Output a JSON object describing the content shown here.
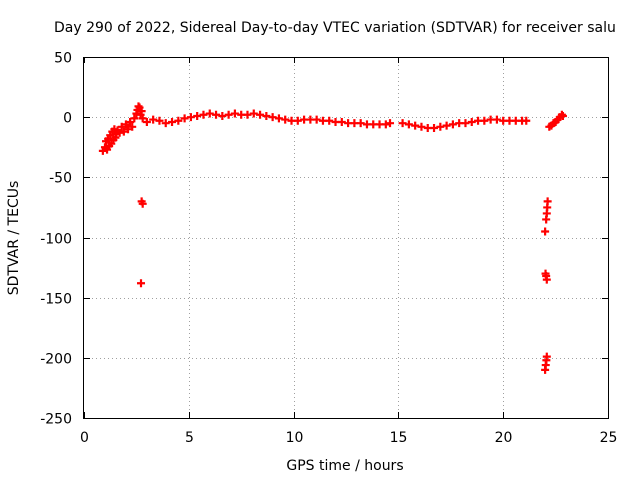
{
  "chart_data": {
    "type": "scatter",
    "title": "Day 290 of 2022, Sidereal Day-to-day VTEC variation (SDTVAR) for receiver salu",
    "xlabel": "GPS time / hours",
    "ylabel": "SDTVAR / TECUs",
    "xlim": [
      0,
      25
    ],
    "ylim": [
      -250,
      50
    ],
    "xticks": [
      0,
      5,
      10,
      15,
      20,
      25
    ],
    "yticks": [
      50,
      0,
      -50,
      -100,
      -150,
      -200,
      -250
    ],
    "grid": true,
    "marker": "plus",
    "color": "#ff0000",
    "series": [
      {
        "name": "SDTVAR",
        "points": [
          [
            0.9,
            -28
          ],
          [
            1.0,
            -25
          ],
          [
            1.05,
            -20
          ],
          [
            1.1,
            -27
          ],
          [
            1.15,
            -18
          ],
          [
            1.2,
            -24
          ],
          [
            1.25,
            -15
          ],
          [
            1.3,
            -22
          ],
          [
            1.35,
            -12
          ],
          [
            1.4,
            -19
          ],
          [
            1.45,
            -10
          ],
          [
            1.5,
            -17
          ],
          [
            1.55,
            -14
          ],
          [
            1.6,
            -11
          ],
          [
            1.7,
            -13
          ],
          [
            1.8,
            -8
          ],
          [
            1.9,
            -12
          ],
          [
            2.0,
            -6
          ],
          [
            2.1,
            -10
          ],
          [
            2.2,
            -4
          ],
          [
            2.3,
            -8
          ],
          [
            2.4,
            -1
          ],
          [
            2.5,
            3
          ],
          [
            2.55,
            6
          ],
          [
            2.6,
            9
          ],
          [
            2.65,
            8
          ],
          [
            2.7,
            2
          ],
          [
            2.75,
            5
          ],
          [
            2.8,
            -1
          ],
          [
            3.0,
            -4
          ],
          [
            3.3,
            -2
          ],
          [
            3.6,
            -3
          ],
          [
            3.9,
            -5
          ],
          [
            4.2,
            -4
          ],
          [
            4.5,
            -3
          ],
          [
            4.8,
            -1
          ],
          [
            5.1,
            0
          ],
          [
            5.4,
            1
          ],
          [
            5.7,
            2
          ],
          [
            6.0,
            3
          ],
          [
            6.3,
            2
          ],
          [
            6.6,
            1
          ],
          [
            6.9,
            2
          ],
          [
            7.2,
            3
          ],
          [
            7.5,
            2
          ],
          [
            7.8,
            2
          ],
          [
            8.1,
            3
          ],
          [
            8.4,
            2
          ],
          [
            8.7,
            1
          ],
          [
            9.0,
            0
          ],
          [
            9.3,
            -1
          ],
          [
            9.6,
            -2
          ],
          [
            9.9,
            -3
          ],
          [
            10.2,
            -3
          ],
          [
            10.5,
            -2
          ],
          [
            10.8,
            -2
          ],
          [
            11.1,
            -2
          ],
          [
            11.4,
            -3
          ],
          [
            11.7,
            -3
          ],
          [
            12.0,
            -4
          ],
          [
            12.3,
            -4
          ],
          [
            12.6,
            -5
          ],
          [
            12.9,
            -5
          ],
          [
            13.2,
            -5
          ],
          [
            13.5,
            -6
          ],
          [
            13.8,
            -6
          ],
          [
            14.1,
            -6
          ],
          [
            14.4,
            -6
          ],
          [
            14.6,
            -5
          ],
          [
            15.2,
            -5
          ],
          [
            15.5,
            -6
          ],
          [
            15.8,
            -7
          ],
          [
            16.1,
            -8
          ],
          [
            16.4,
            -9
          ],
          [
            16.7,
            -9
          ],
          [
            17.0,
            -8
          ],
          [
            17.3,
            -7
          ],
          [
            17.6,
            -6
          ],
          [
            17.9,
            -5
          ],
          [
            18.2,
            -5
          ],
          [
            18.5,
            -4
          ],
          [
            18.8,
            -3
          ],
          [
            19.1,
            -3
          ],
          [
            19.4,
            -2
          ],
          [
            19.7,
            -2
          ],
          [
            20.0,
            -3
          ],
          [
            20.3,
            -3
          ],
          [
            20.6,
            -3
          ],
          [
            20.9,
            -3
          ],
          [
            21.1,
            -3
          ],
          [
            22.2,
            -8
          ],
          [
            22.3,
            -7
          ],
          [
            22.4,
            -5
          ],
          [
            22.5,
            -4
          ],
          [
            22.6,
            -2
          ],
          [
            22.7,
            0
          ],
          [
            22.8,
            2
          ],
          [
            22.85,
            1
          ],
          [
            2.75,
            -70
          ],
          [
            2.8,
            -72
          ],
          [
            2.72,
            -138
          ],
          [
            22.0,
            -95
          ],
          [
            22.05,
            -85
          ],
          [
            22.08,
            -80
          ],
          [
            22.1,
            -75
          ],
          [
            22.12,
            -70
          ],
          [
            22.02,
            -130
          ],
          [
            22.05,
            -132
          ],
          [
            22.08,
            -135
          ],
          [
            22.0,
            -210
          ],
          [
            22.03,
            -206
          ],
          [
            22.06,
            -202
          ],
          [
            22.08,
            -199
          ]
        ]
      }
    ]
  }
}
